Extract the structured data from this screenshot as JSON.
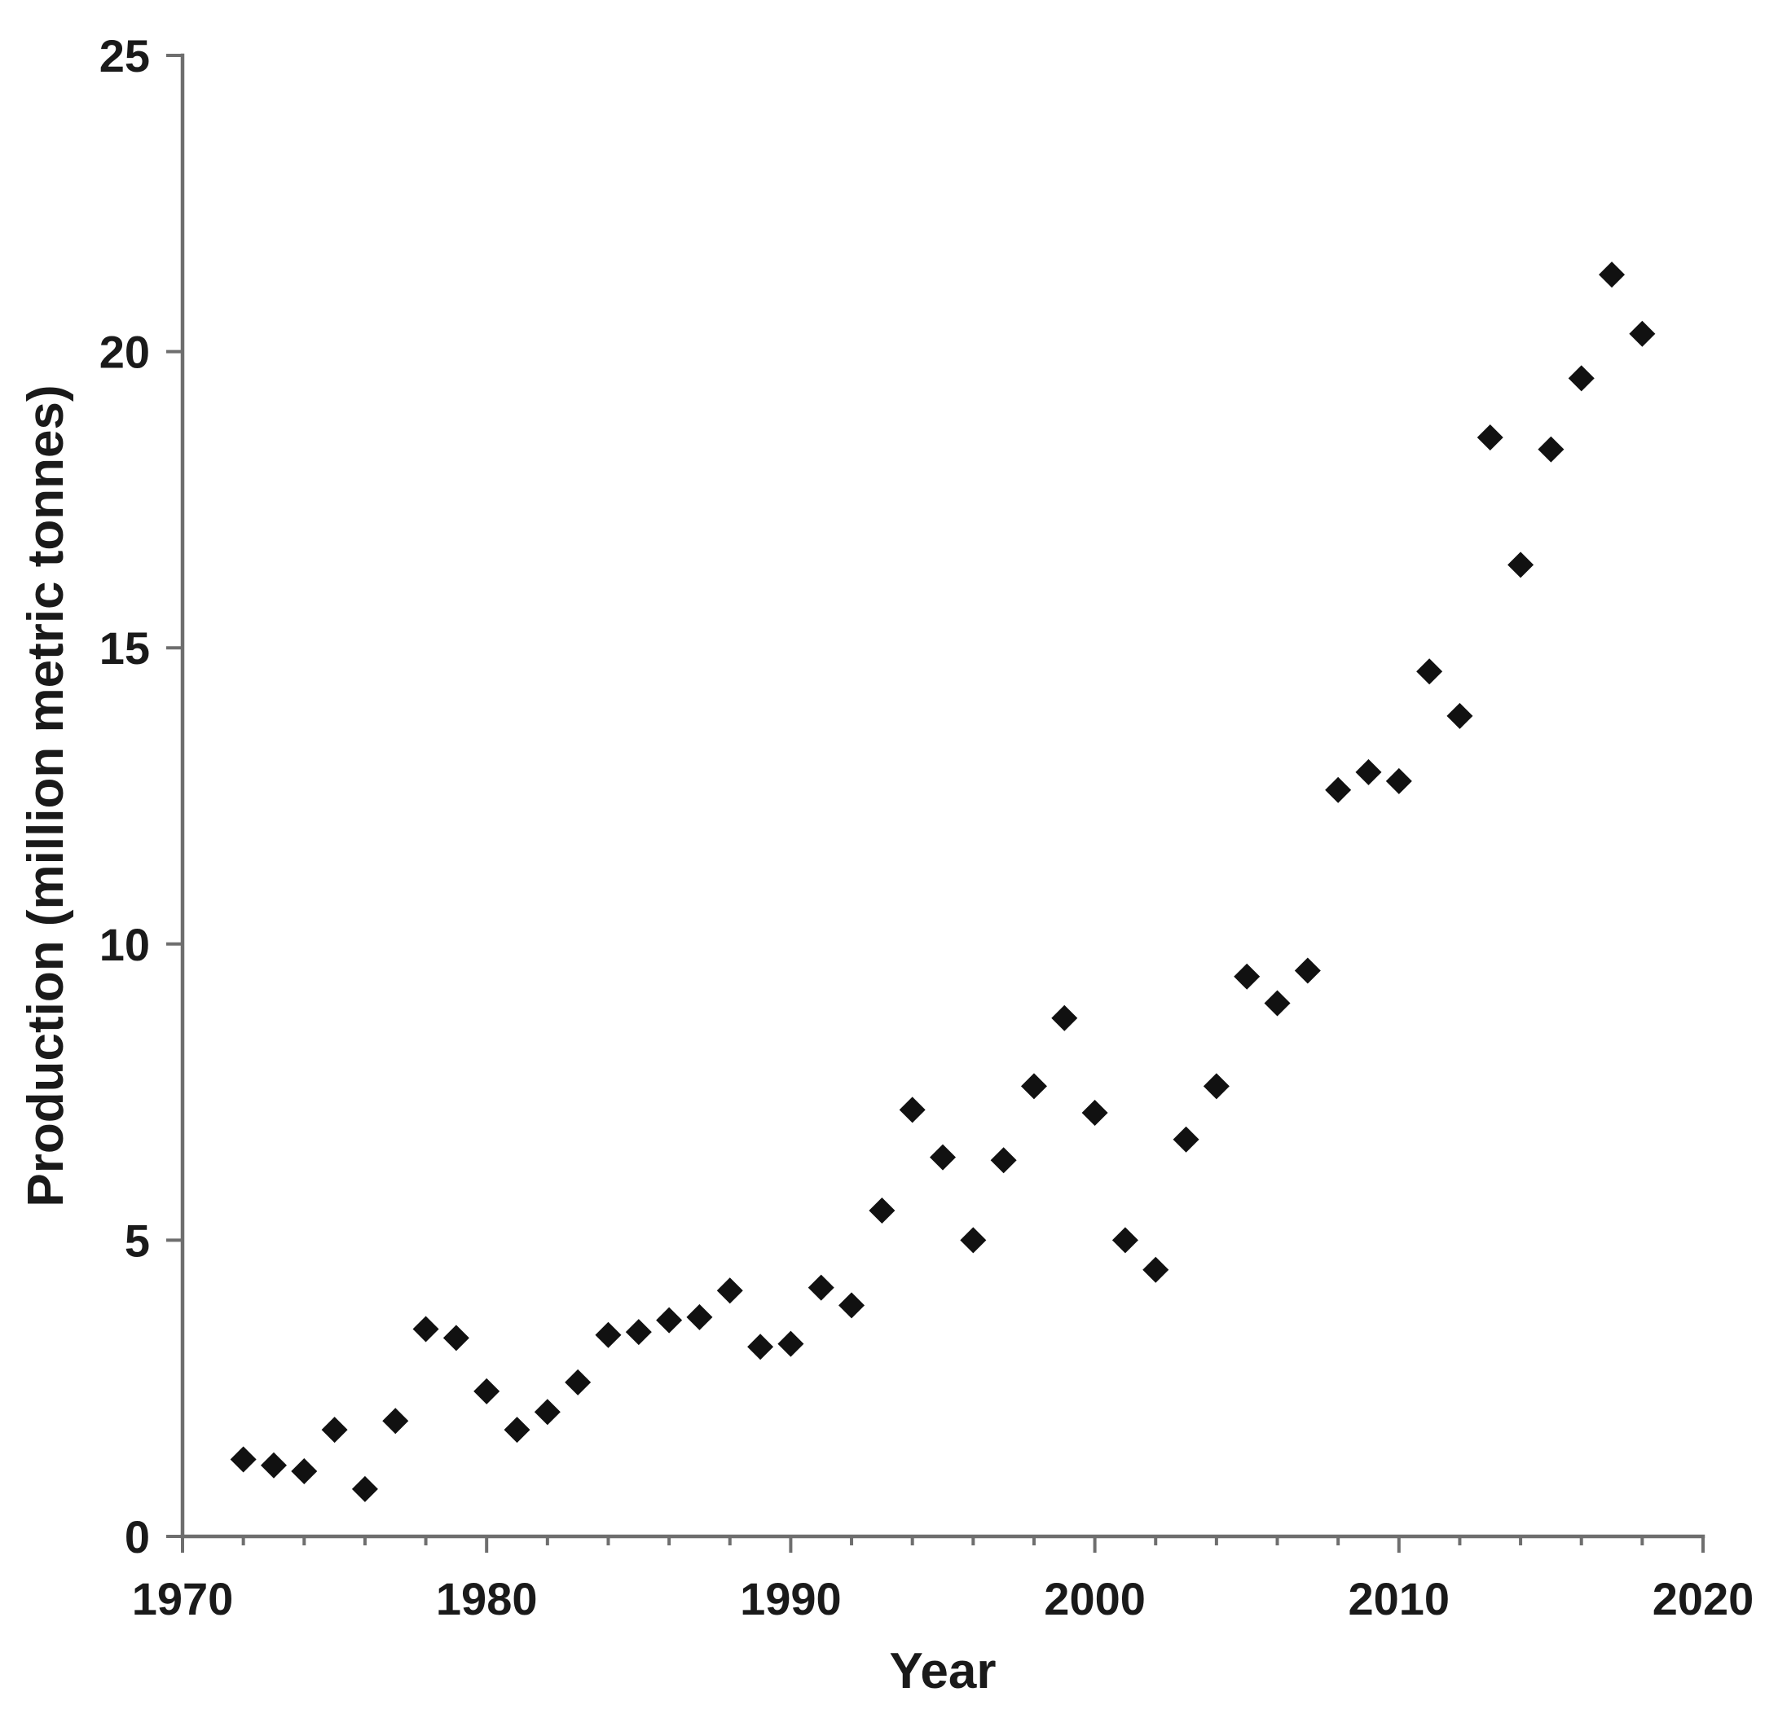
{
  "figure": {
    "background": "#ffffff"
  },
  "chart_data": {
    "type": "scatter",
    "title": "",
    "xlabel": "Year",
    "ylabel": "Production (million metric tonnes)",
    "xlim": [
      1970,
      2020
    ],
    "ylim": [
      0,
      25
    ],
    "x_ticks": [
      1970,
      1980,
      1990,
      2000,
      2010,
      2020
    ],
    "x_minor_tick_step_years": 2,
    "y_ticks": [
      0,
      5,
      10,
      15,
      20,
      25
    ],
    "grid": false,
    "legend": false,
    "marker_shape": "diamond",
    "marker_color": "#111111",
    "axis_color": "#6e6e6e",
    "label_color": "#1a1a1a",
    "series": [
      {
        "name": "Production",
        "points": [
          {
            "x": 1972,
            "y": 1.3
          },
          {
            "x": 1973,
            "y": 1.2
          },
          {
            "x": 1974,
            "y": 1.1
          },
          {
            "x": 1975,
            "y": 1.8
          },
          {
            "x": 1976,
            "y": 0.8
          },
          {
            "x": 1977,
            "y": 1.95
          },
          {
            "x": 1978,
            "y": 3.5
          },
          {
            "x": 1979,
            "y": 3.35
          },
          {
            "x": 1980,
            "y": 2.45
          },
          {
            "x": 1981,
            "y": 1.8
          },
          {
            "x": 1982,
            "y": 2.1
          },
          {
            "x": 1983,
            "y": 2.6
          },
          {
            "x": 1984,
            "y": 3.4
          },
          {
            "x": 1985,
            "y": 3.45
          },
          {
            "x": 1986,
            "y": 3.65
          },
          {
            "x": 1987,
            "y": 3.7
          },
          {
            "x": 1988,
            "y": 4.15
          },
          {
            "x": 1989,
            "y": 3.2
          },
          {
            "x": 1990,
            "y": 3.25
          },
          {
            "x": 1991,
            "y": 4.2
          },
          {
            "x": 1992,
            "y": 3.9
          },
          {
            "x": 1993,
            "y": 5.5
          },
          {
            "x": 1994,
            "y": 7.2
          },
          {
            "x": 1995,
            "y": 6.4
          },
          {
            "x": 1996,
            "y": 5.0
          },
          {
            "x": 1997,
            "y": 6.35
          },
          {
            "x": 1998,
            "y": 7.6
          },
          {
            "x": 1999,
            "y": 8.75
          },
          {
            "x": 2000,
            "y": 7.15
          },
          {
            "x": 2001,
            "y": 5.0
          },
          {
            "x": 2002,
            "y": 4.5
          },
          {
            "x": 2003,
            "y": 6.7
          },
          {
            "x": 2004,
            "y": 7.6
          },
          {
            "x": 2005,
            "y": 9.45
          },
          {
            "x": 2006,
            "y": 9.0
          },
          {
            "x": 2007,
            "y": 9.55
          },
          {
            "x": 2008,
            "y": 12.6
          },
          {
            "x": 2009,
            "y": 12.9
          },
          {
            "x": 2010,
            "y": 12.75
          },
          {
            "x": 2011,
            "y": 14.6
          },
          {
            "x": 2012,
            "y": 13.85
          },
          {
            "x": 2013,
            "y": 18.55
          },
          {
            "x": 2014,
            "y": 16.4
          },
          {
            "x": 2015,
            "y": 18.35
          },
          {
            "x": 2016,
            "y": 19.55
          },
          {
            "x": 2017,
            "y": 21.3
          },
          {
            "x": 2018,
            "y": 20.3
          }
        ]
      }
    ]
  }
}
